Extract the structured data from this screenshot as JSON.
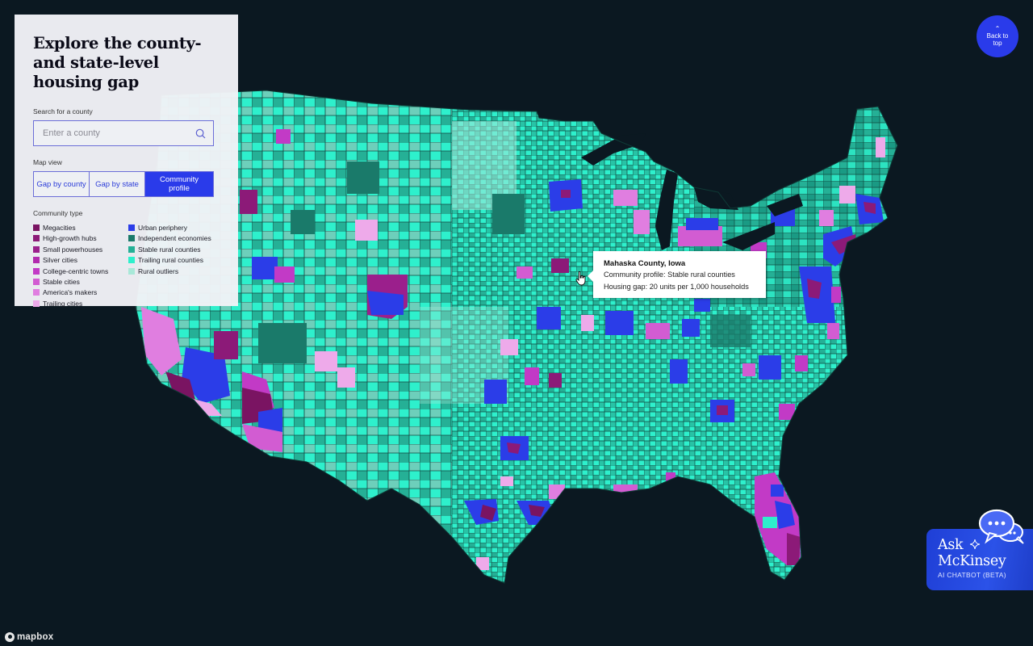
{
  "panel": {
    "title": "Explore the county- and state-level housing gap",
    "search": {
      "label": "Search for a county",
      "placeholder": "Enter a county",
      "value": "",
      "icon": "search-icon"
    },
    "map_view": {
      "label": "Map view",
      "options": [
        {
          "label": "Gap by county",
          "active": false
        },
        {
          "label": "Gap by state",
          "active": false
        },
        {
          "label": "Community profile",
          "active": true
        }
      ]
    },
    "legend": {
      "label": "Community type",
      "left": [
        {
          "label": "Megacities",
          "color": "#7a1462"
        },
        {
          "label": "High-growth hubs",
          "color": "#8c1a78"
        },
        {
          "label": "Small powerhouses",
          "color": "#9b1f8c"
        },
        {
          "label": "Silver cities",
          "color": "#b22aae"
        },
        {
          "label": "College-centric towns",
          "color": "#c23ac6"
        },
        {
          "label": "Stable cities",
          "color": "#d25cd2"
        },
        {
          "label": "America's makers",
          "color": "#e07ee0"
        },
        {
          "label": "Trailing cities",
          "color": "#eeaaea"
        }
      ],
      "right": [
        {
          "label": "Urban periphery",
          "color": "#2b3de8"
        },
        {
          "label": "Independent economies",
          "color": "#1a7a6a"
        },
        {
          "label": "Stable rural counties",
          "color": "#25b096"
        },
        {
          "label": "Trailing rural counties",
          "color": "#2ef0cc"
        },
        {
          "label": "Rural outliers",
          "color": "#a8e8d8"
        }
      ]
    }
  },
  "tooltip": {
    "county": "Mahaska County, Iowa",
    "profile": "Community profile: Stable rural counties",
    "gap": "Housing gap: 20 units per 1,000 households"
  },
  "back_to_top": {
    "icon": "chevron-up-icon",
    "label_line1": "Back to",
    "label_line2": "top"
  },
  "chatbot": {
    "line1": "Ask",
    "line2": "McKinsey",
    "subtitle": "AI CHATBOT (BETA)",
    "icon": "chat-bubbles-icon"
  },
  "attribution": {
    "label": "mapbox"
  },
  "colors": {
    "background": "#0b1821",
    "accent": "#2a3bea",
    "panel_bg": "#f1f2f6"
  }
}
